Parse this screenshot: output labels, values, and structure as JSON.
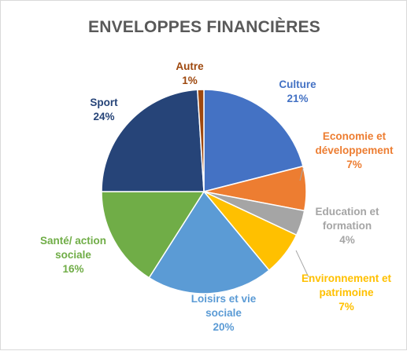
{
  "chart_data": {
    "type": "pie",
    "title": "ENVELOPPES FINANCIÈRES",
    "slices": [
      {
        "label": [
          "Culture"
        ],
        "percent_label": "21%",
        "value": 21,
        "color": "#4472c4"
      },
      {
        "label": [
          "Economie et",
          "développement"
        ],
        "percent_label": "7%",
        "value": 7,
        "color": "#ed7d31"
      },
      {
        "label": [
          "Education et",
          "formation"
        ],
        "percent_label": "4%",
        "value": 4,
        "color": "#a5a5a5"
      },
      {
        "label": [
          "Environnement et",
          "patrimoine"
        ],
        "percent_label": "7%",
        "value": 7,
        "color": "#ffc000"
      },
      {
        "label": [
          "Loisirs et vie",
          "sociale"
        ],
        "percent_label": "20%",
        "value": 20,
        "color": "#5b9bd5"
      },
      {
        "label": [
          "Santé/ action",
          "sociale"
        ],
        "percent_label": "16%",
        "value": 16,
        "color": "#70ad47"
      },
      {
        "label": [
          "Sport"
        ],
        "percent_label": "24%",
        "value": 24,
        "color": "#264478"
      },
      {
        "label": [
          "Autre"
        ],
        "percent_label": "1%",
        "value": 1,
        "color": "#9e480e"
      }
    ],
    "legend": "none",
    "data_labels": "outside"
  }
}
